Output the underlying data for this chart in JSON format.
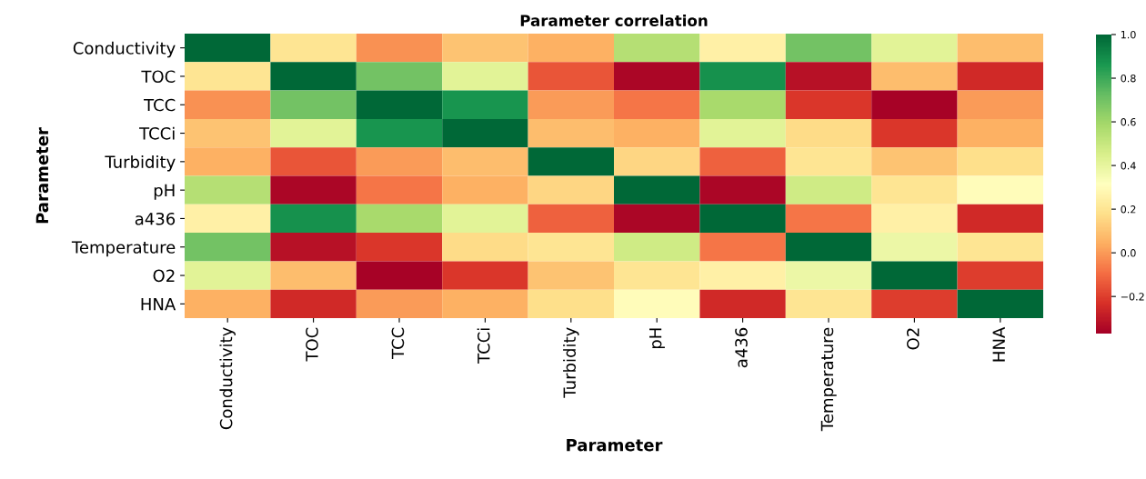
{
  "chart_data": {
    "type": "heatmap",
    "title": "Parameter correlation",
    "xlabel": "Parameter",
    "ylabel": "Parameter",
    "categories": [
      "Conductivity",
      "TOC",
      "TCC",
      "TCCi",
      "Turbidity",
      "pH",
      "a436",
      "Temperature",
      "O2",
      "HNA"
    ],
    "y_categories": [
      "Conductivity",
      "TOC",
      "TCC",
      "TCCi",
      "Turbidity",
      "pH",
      "a436",
      "Temperature",
      "O2",
      "HNA"
    ],
    "cells": [
      [
        1,
        0.2,
        -0.02,
        0.1,
        0.05,
        0.55,
        0.25,
        0.7,
        0.42,
        0.08
      ],
      [
        0.2,
        1,
        0.7,
        0.42,
        -0.15,
        -0.35,
        0.88,
        -0.32,
        0.08,
        -0.25
      ],
      [
        -0.02,
        0.7,
        1,
        0.87,
        0.0,
        -0.08,
        0.58,
        -0.22,
        -0.36,
        0.0
      ],
      [
        0.1,
        0.42,
        0.87,
        1,
        0.08,
        0.05,
        0.42,
        0.17,
        -0.22,
        0.05
      ],
      [
        0.05,
        -0.15,
        0.0,
        0.08,
        1,
        0.15,
        -0.12,
        0.2,
        0.1,
        0.18
      ],
      [
        0.55,
        -0.35,
        -0.08,
        0.05,
        0.15,
        1,
        -0.35,
        0.48,
        0.2,
        0.3
      ],
      [
        0.25,
        0.88,
        0.58,
        0.42,
        -0.12,
        -0.35,
        1,
        -0.08,
        0.25,
        -0.25
      ],
      [
        0.7,
        -0.32,
        -0.22,
        0.17,
        0.2,
        0.48,
        -0.08,
        1,
        0.38,
        0.2
      ],
      [
        0.42,
        0.08,
        -0.36,
        -0.22,
        0.1,
        0.2,
        0.25,
        0.38,
        1,
        -0.2
      ],
      [
        0.05,
        -0.25,
        0.0,
        0.05,
        0.18,
        0.3,
        -0.25,
        0.2,
        -0.2,
        1
      ]
    ],
    "clim": [
      -0.37,
      1.0
    ],
    "cticks": [
      {
        "value": -0.2,
        "label": "−0.2"
      },
      {
        "value": 0.0,
        "label": "0.0"
      },
      {
        "value": 0.2,
        "label": "0.2"
      },
      {
        "value": 0.4,
        "label": "0.4"
      },
      {
        "value": 0.6,
        "label": "0.6"
      },
      {
        "value": 0.8,
        "label": "0.8"
      },
      {
        "value": 1.0,
        "label": "1.0"
      }
    ]
  }
}
